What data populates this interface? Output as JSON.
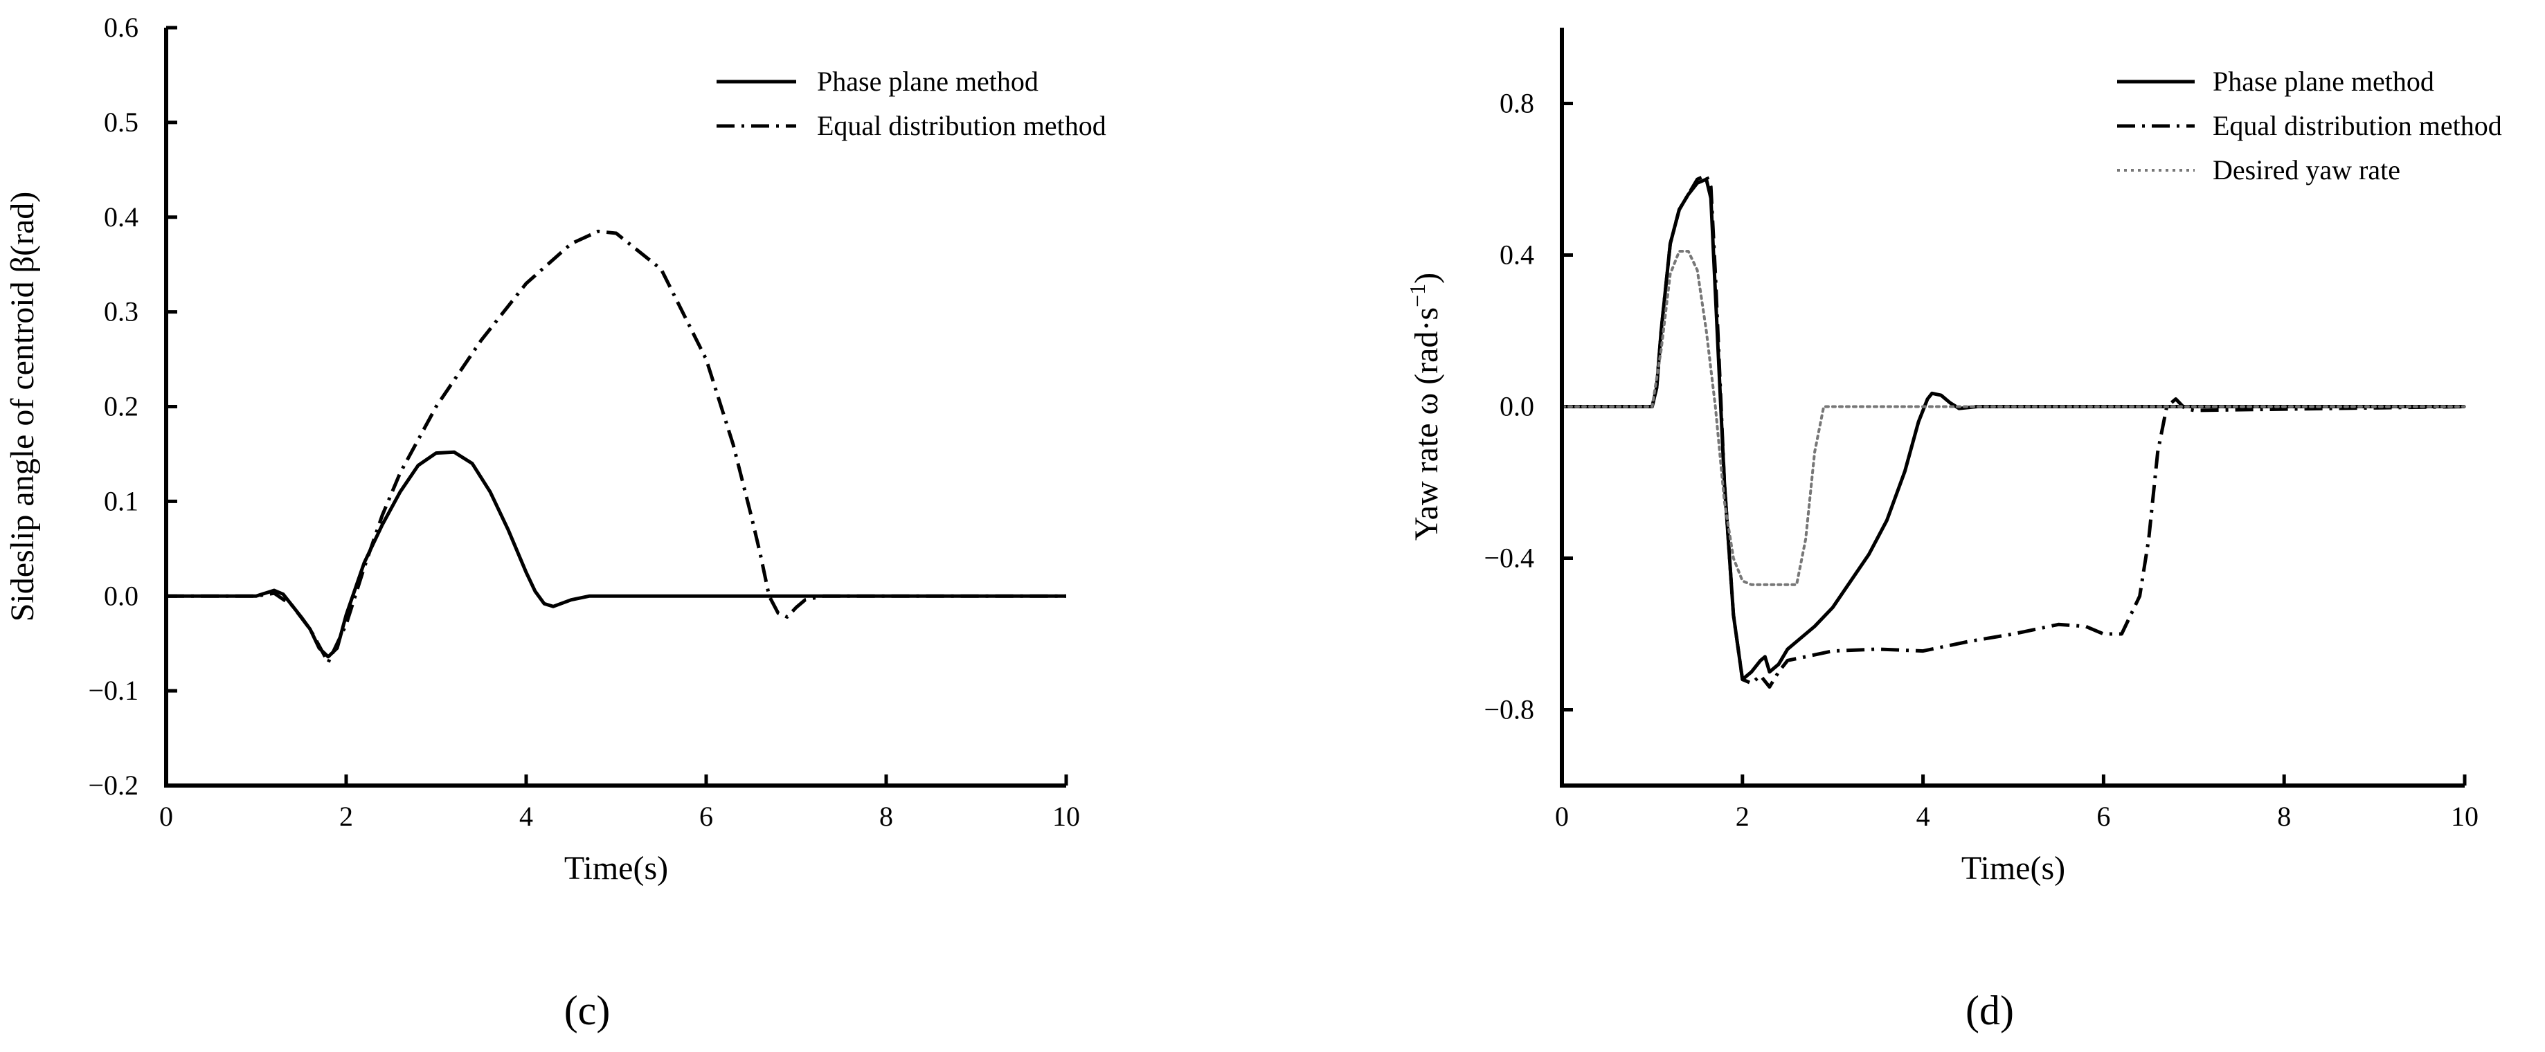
{
  "chart_data": [
    {
      "type": "line",
      "panel_label": "c",
      "panel_label_display": "(c)",
      "title": "",
      "xlabel": "Time(s)",
      "ylabel": "Sideslip angle of centroid β(rad)",
      "xlim": [
        0,
        10
      ],
      "ylim": [
        -0.2,
        0.6
      ],
      "xticks": [
        0,
        2,
        4,
        6,
        8,
        10
      ],
      "xtick_labels": [
        "0",
        "2",
        "4",
        "6",
        "8",
        "10"
      ],
      "yticks": [
        -0.2,
        -0.1,
        0.0,
        0.1,
        0.2,
        0.3,
        0.4,
        0.5,
        0.6
      ],
      "ytick_labels": [
        "−0.2",
        "−0.1",
        "0.0",
        "0.1",
        "0.2",
        "0.3",
        "0.4",
        "0.5",
        "0.6"
      ],
      "grid": false,
      "legend_position": "top-right",
      "series": [
        {
          "name": "Phase plane method",
          "style": "solid",
          "color": "#000000",
          "x": [
            0,
            1.0,
            1.1,
            1.2,
            1.3,
            1.4,
            1.5,
            1.6,
            1.7,
            1.8,
            1.9,
            2.0,
            2.2,
            2.4,
            2.6,
            2.8,
            3.0,
            3.2,
            3.4,
            3.6,
            3.8,
            4.0,
            4.1,
            4.2,
            4.3,
            4.5,
            4.7,
            5.0,
            10
          ],
          "y": [
            0,
            0,
            0.003,
            0.006,
            0.002,
            -0.01,
            -0.022,
            -0.035,
            -0.055,
            -0.064,
            -0.055,
            -0.02,
            0.035,
            0.075,
            0.11,
            0.138,
            0.151,
            0.152,
            0.14,
            0.11,
            0.07,
            0.025,
            0.005,
            -0.008,
            -0.011,
            -0.004,
            0.0,
            0.0,
            0.0
          ]
        },
        {
          "name": "Equal distribution method",
          "style": "dashdot",
          "color": "#000000",
          "x": [
            0,
            1.0,
            1.2,
            1.4,
            1.6,
            1.8,
            2.0,
            2.2,
            2.4,
            2.6,
            3.0,
            3.5,
            4.0,
            4.5,
            4.8,
            5.0,
            5.5,
            6.0,
            6.3,
            6.5,
            6.6,
            6.7,
            6.8,
            6.9,
            7.0,
            7.1,
            7.3,
            10
          ],
          "y": [
            0,
            0,
            0.003,
            -0.01,
            -0.035,
            -0.07,
            -0.03,
            0.03,
            0.085,
            0.13,
            0.2,
            0.27,
            0.33,
            0.372,
            0.385,
            0.383,
            0.345,
            0.25,
            0.16,
            0.085,
            0.045,
            0.0,
            -0.018,
            -0.022,
            -0.012,
            -0.004,
            0.0,
            0.0
          ]
        }
      ]
    },
    {
      "type": "line",
      "panel_label": "d",
      "panel_label_display": "(d)",
      "title": "",
      "xlabel": "Time(s)",
      "ylabel_prefix": "Yaw rate ω (rad·s",
      "ylabel_sup": "−1",
      "ylabel_suffix": ")",
      "xlim": [
        0,
        10
      ],
      "ylim": [
        -1.0,
        1.0
      ],
      "xticks": [
        0,
        2,
        4,
        6,
        8,
        10
      ],
      "xtick_labels": [
        "0",
        "2",
        "4",
        "6",
        "8",
        "10"
      ],
      "yticks": [
        -0.8,
        -0.4,
        0.0,
        0.4,
        0.8
      ],
      "ytick_labels": [
        "−0.8",
        "−0.4",
        "0.0",
        "0.4",
        "0.8"
      ],
      "grid": false,
      "legend_position": "top-right",
      "series": [
        {
          "name": "Phase plane method",
          "style": "solid",
          "color": "#000000",
          "x": [
            0,
            1.0,
            1.05,
            1.1,
            1.2,
            1.3,
            1.4,
            1.5,
            1.6,
            1.65,
            1.7,
            1.8,
            1.9,
            2.0,
            2.1,
            2.2,
            2.25,
            2.3,
            2.4,
            2.5,
            2.6,
            2.8,
            3.0,
            3.2,
            3.4,
            3.6,
            3.8,
            3.95,
            4.05,
            4.1,
            4.2,
            4.3,
            4.4,
            4.6,
            10
          ],
          "y": [
            0,
            0,
            0.05,
            0.2,
            0.43,
            0.52,
            0.56,
            0.59,
            0.6,
            0.55,
            0.3,
            -0.2,
            -0.55,
            -0.72,
            -0.7,
            -0.67,
            -0.66,
            -0.7,
            -0.68,
            -0.64,
            -0.62,
            -0.58,
            -0.53,
            -0.46,
            -0.39,
            -0.3,
            -0.17,
            -0.04,
            0.02,
            0.035,
            0.03,
            0.01,
            -0.005,
            0.0,
            0.0
          ]
        },
        {
          "name": "Equal distribution method",
          "style": "dashdot",
          "color": "#000000",
          "x": [
            0,
            1.0,
            1.05,
            1.1,
            1.2,
            1.3,
            1.4,
            1.5,
            1.6,
            1.65,
            1.7,
            1.8,
            1.9,
            2.0,
            2.1,
            2.2,
            2.3,
            2.4,
            2.5,
            2.7,
            3.0,
            3.5,
            4.0,
            4.5,
            5.0,
            5.5,
            5.8,
            6.0,
            6.2,
            6.4,
            6.5,
            6.6,
            6.7,
            6.8,
            6.9,
            7.0,
            10
          ],
          "y": [
            0,
            0,
            0.05,
            0.2,
            0.43,
            0.52,
            0.56,
            0.6,
            0.61,
            0.58,
            0.35,
            -0.2,
            -0.55,
            -0.72,
            -0.73,
            -0.71,
            -0.74,
            -0.7,
            -0.67,
            -0.66,
            -0.645,
            -0.64,
            -0.645,
            -0.62,
            -0.6,
            -0.575,
            -0.58,
            -0.6,
            -0.6,
            -0.5,
            -0.35,
            -0.12,
            0.0,
            0.02,
            -0.005,
            -0.01,
            0.0
          ]
        },
        {
          "name": "Desired yaw rate",
          "style": "dotted",
          "color": "#777777",
          "x": [
            0,
            1.0,
            1.1,
            1.2,
            1.3,
            1.4,
            1.5,
            1.6,
            1.7,
            1.8,
            1.9,
            2.0,
            2.1,
            2.2,
            2.6,
            2.7,
            2.8,
            2.9,
            3.0,
            10
          ],
          "y": [
            0,
            0,
            0.15,
            0.35,
            0.41,
            0.41,
            0.36,
            0.2,
            0.0,
            -0.25,
            -0.4,
            -0.46,
            -0.47,
            -0.47,
            -0.47,
            -0.35,
            -0.12,
            0.0,
            0.0,
            0.0
          ]
        }
      ]
    }
  ]
}
